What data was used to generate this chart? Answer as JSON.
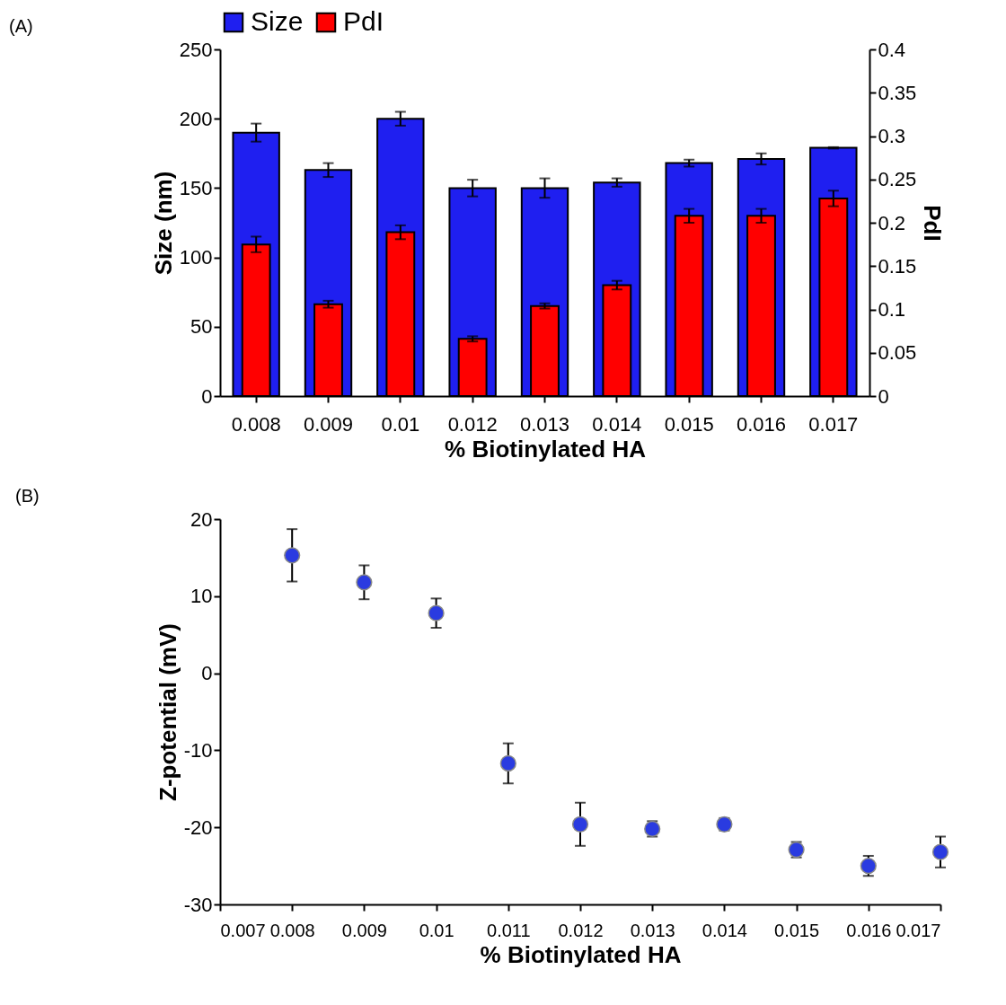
{
  "chart_data": [
    {
      "type": "bar",
      "annotations": [
        "(A)"
      ],
      "xlabel": "% Biotinylated HA",
      "ylabel": "Size (nm)",
      "y2label": "PdI",
      "legend": "top",
      "categories": [
        "0.008",
        "0.009",
        "0.01",
        "0.012",
        "0.013",
        "0.014",
        "0.015",
        "0.016",
        "0.017"
      ],
      "series": [
        {
          "name": "Size",
          "color": "#1f1ff0",
          "values": [
            190,
            163,
            200,
            150,
            150,
            154,
            168,
            171,
            179
          ],
          "errors": [
            6.5,
            5,
            5,
            6,
            7,
            3,
            2.5,
            4,
            0.5
          ]
        },
        {
          "name": "PdI",
          "color": "#ff0000",
          "axis": "y2",
          "values": [
            0.175,
            0.106,
            0.189,
            0.066,
            0.104,
            0.128,
            0.208,
            0.208,
            0.228
          ],
          "errors": [
            0.009,
            0.004,
            0.008,
            0.003,
            0.003,
            0.005,
            0.008,
            0.008,
            0.009
          ]
        }
      ],
      "ylim": [
        0,
        250
      ],
      "yticks": [
        0,
        50,
        100,
        150,
        200,
        250
      ],
      "y2lim": [
        0,
        0.4
      ],
      "y2ticks": [
        0,
        0.05,
        0.1,
        0.15,
        0.2,
        0.25,
        0.3,
        0.35,
        0.4
      ]
    },
    {
      "type": "scatter",
      "annotations": [
        "(B)"
      ],
      "xlabel": "% Biotinylated HA",
      "ylabel": "Z-potential (mV)",
      "marker": "circle",
      "color": "#2a3be0",
      "x": [
        0.008,
        0.009,
        0.01,
        0.011,
        0.012,
        0.013,
        0.014,
        0.015,
        0.016,
        0.017
      ],
      "values": [
        15.3,
        11.8,
        7.8,
        -11.7,
        -19.6,
        -20.2,
        -19.6,
        -22.9,
        -25,
        -23.2
      ],
      "errors": [
        3.4,
        2.2,
        1.9,
        2.6,
        2.8,
        1,
        0.8,
        1,
        1.3,
        2
      ],
      "xlim": [
        0.007,
        0.017
      ],
      "xticks": [
        0.007,
        0.008,
        0.009,
        0.01,
        0.011,
        0.012,
        0.013,
        0.014,
        0.015,
        0.016,
        0.017
      ],
      "ylim": [
        -30,
        20
      ],
      "yticks": [
        -30,
        -20,
        -10,
        0,
        10,
        20
      ]
    }
  ]
}
